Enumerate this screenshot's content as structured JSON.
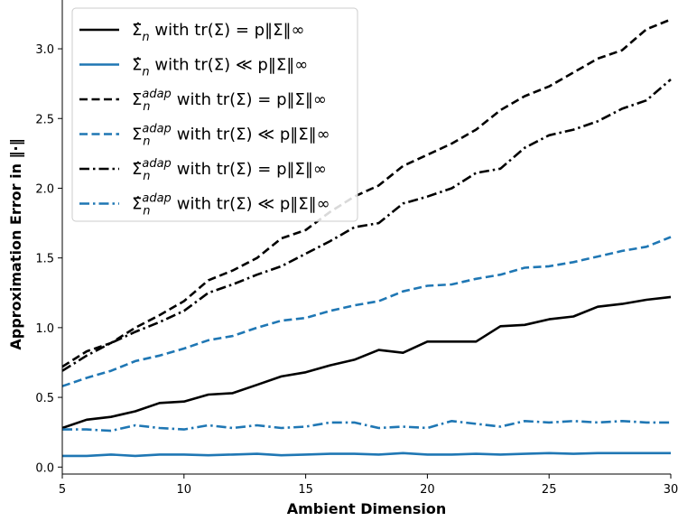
{
  "chart_data": {
    "type": "line",
    "xlabel": "Ambient Dimension",
    "ylabel": "Approximation Error in ‖·‖",
    "xlim": [
      5,
      30
    ],
    "ylim": [
      -0.05,
      3.35
    ],
    "x_ticks": [
      5,
      10,
      15,
      20,
      25,
      30
    ],
    "y_ticks": [
      0.0,
      0.5,
      1.0,
      1.5,
      2.0,
      2.5,
      3.0
    ],
    "legend_position": "upper-left",
    "grid": false,
    "x": [
      5,
      6,
      7,
      8,
      9,
      10,
      11,
      12,
      13,
      14,
      15,
      16,
      17,
      18,
      19,
      20,
      21,
      22,
      23,
      24,
      25,
      26,
      27,
      28,
      29,
      30
    ],
    "series": [
      {
        "legend": {
          "base": "Σ̂",
          "sub": "n",
          "sup": "",
          "cond": " with tr(Σ) = p‖Σ‖∞"
        },
        "color": "#000000",
        "style": "solid",
        "values": [
          0.28,
          0.34,
          0.36,
          0.4,
          0.46,
          0.47,
          0.52,
          0.53,
          0.59,
          0.65,
          0.68,
          0.73,
          0.77,
          0.84,
          0.82,
          0.9,
          0.9,
          0.9,
          1.01,
          1.02,
          1.06,
          1.08,
          1.15,
          1.17,
          1.2,
          1.22
        ]
      },
      {
        "legend": {
          "base": "Σ̂",
          "sub": "n",
          "sup": "",
          "cond": " with tr(Σ) ≪ p‖Σ‖∞"
        },
        "color": "#1f77b4",
        "style": "solid",
        "values": [
          0.08,
          0.08,
          0.09,
          0.08,
          0.09,
          0.09,
          0.085,
          0.09,
          0.095,
          0.085,
          0.09,
          0.095,
          0.095,
          0.09,
          0.1,
          0.09,
          0.09,
          0.095,
          0.09,
          0.095,
          0.1,
          0.095,
          0.1,
          0.1,
          0.1,
          0.1
        ]
      },
      {
        "legend": {
          "base": "Σ",
          "sub": "n",
          "sup": "adap",
          "cond": " with tr(Σ) = p‖Σ‖∞"
        },
        "color": "#000000",
        "style": "dashed",
        "values": [
          0.72,
          0.83,
          0.89,
          1.0,
          1.09,
          1.19,
          1.34,
          1.41,
          1.5,
          1.64,
          1.7,
          1.83,
          1.94,
          2.02,
          2.16,
          2.24,
          2.32,
          2.42,
          2.56,
          2.66,
          2.73,
          2.83,
          2.93,
          2.99,
          3.14,
          3.21
        ]
      },
      {
        "legend": {
          "base": "Σ",
          "sub": "n",
          "sup": "adap",
          "cond": " with tr(Σ) ≪ p‖Σ‖∞"
        },
        "color": "#1f77b4",
        "style": "dashed",
        "values": [
          0.58,
          0.64,
          0.69,
          0.76,
          0.8,
          0.85,
          0.91,
          0.94,
          1.0,
          1.05,
          1.07,
          1.12,
          1.16,
          1.19,
          1.26,
          1.3,
          1.31,
          1.35,
          1.38,
          1.43,
          1.44,
          1.47,
          1.51,
          1.55,
          1.58,
          1.65
        ]
      },
      {
        "legend": {
          "base": "Σ̂",
          "sub": "n",
          "sup": "adap",
          "cond": " with tr(Σ) = p‖Σ‖∞"
        },
        "color": "#000000",
        "style": "dashdot",
        "values": [
          0.69,
          0.8,
          0.89,
          0.97,
          1.04,
          1.12,
          1.25,
          1.31,
          1.38,
          1.44,
          1.53,
          1.62,
          1.72,
          1.75,
          1.89,
          1.94,
          2.0,
          2.11,
          2.14,
          2.29,
          2.38,
          2.42,
          2.48,
          2.57,
          2.63,
          2.78
        ]
      },
      {
        "legend": {
          "base": "Σ̂",
          "sub": "n",
          "sup": "adap",
          "cond": " with tr(Σ) ≪ p‖Σ‖∞"
        },
        "color": "#1f77b4",
        "style": "dashdot",
        "values": [
          0.27,
          0.27,
          0.26,
          0.3,
          0.28,
          0.27,
          0.3,
          0.28,
          0.3,
          0.28,
          0.29,
          0.32,
          0.32,
          0.28,
          0.29,
          0.28,
          0.33,
          0.31,
          0.29,
          0.33,
          0.32,
          0.33,
          0.32,
          0.33,
          0.32,
          0.32
        ]
      }
    ]
  }
}
